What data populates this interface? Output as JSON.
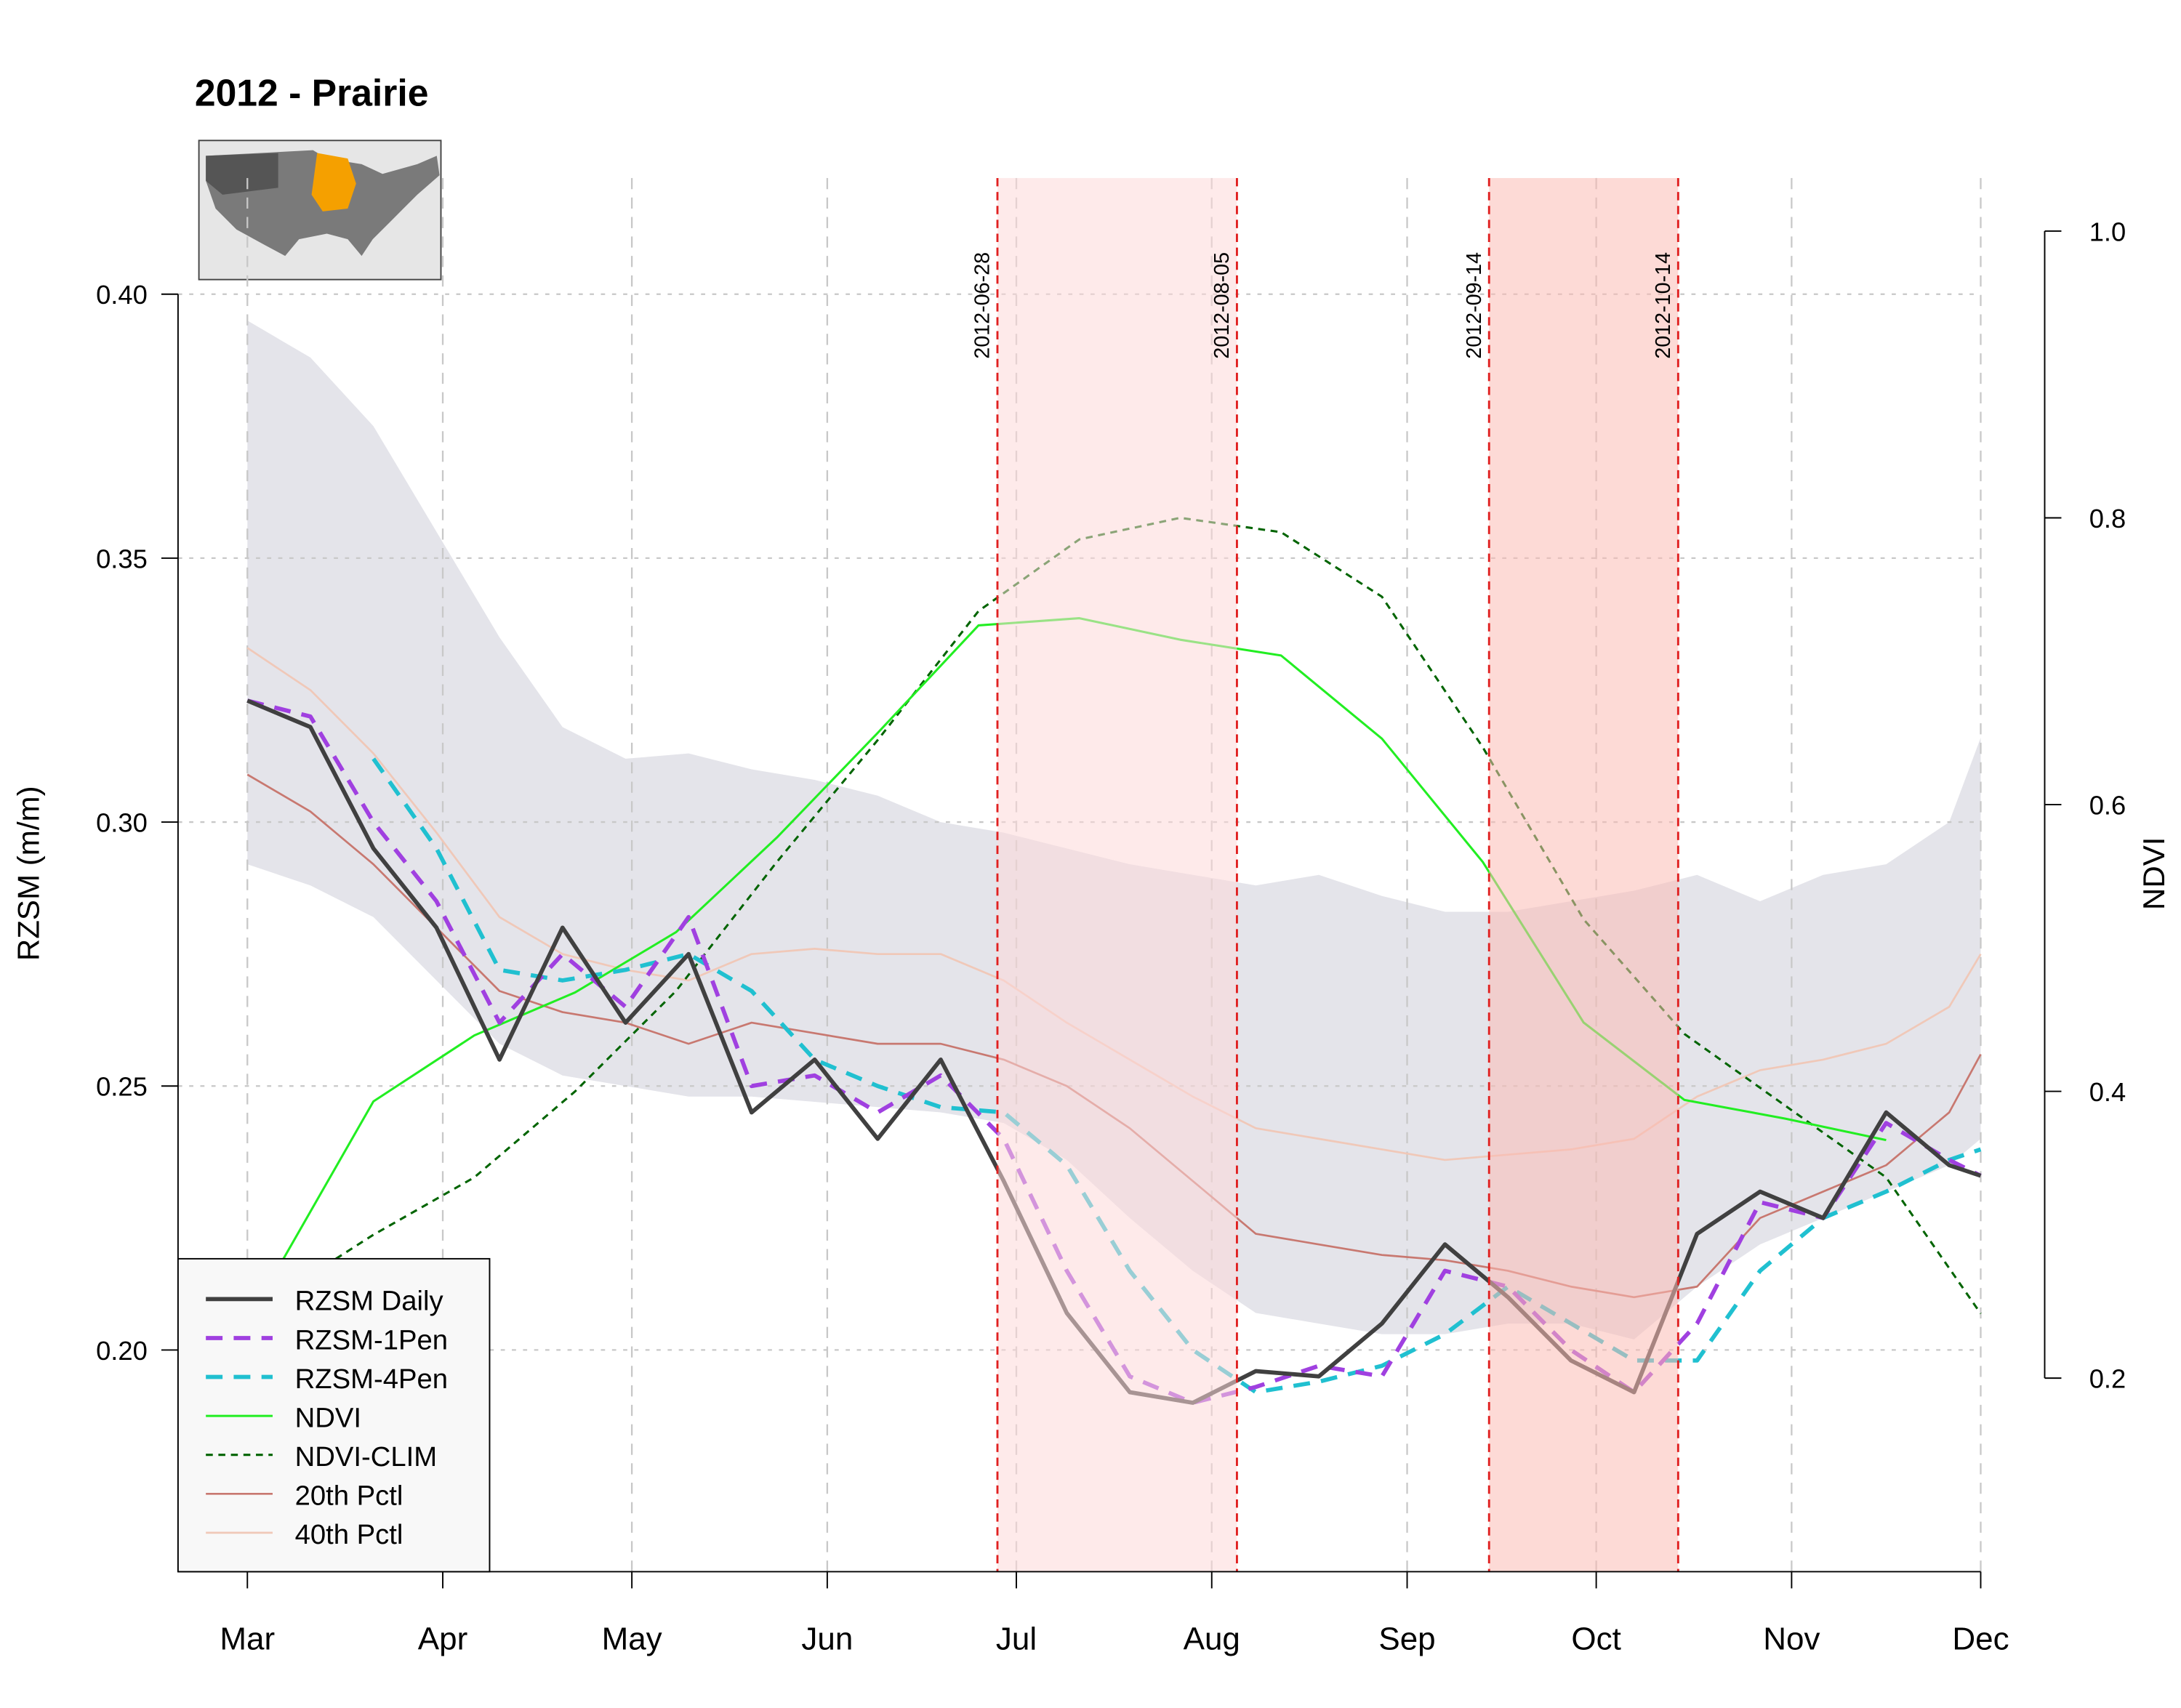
{
  "chart_data": {
    "type": "line",
    "title": "2012 - Prairie",
    "ylabel": "RZSM (m/m)",
    "y2label": "NDVI",
    "xlim": [
      "2012-02-19",
      "2012-12-01"
    ],
    "xticks": [
      {
        "value": "2012-03-01",
        "label": "Mar"
      },
      {
        "value": "2012-04-01",
        "label": "Apr"
      },
      {
        "value": "2012-05-01",
        "label": "May"
      },
      {
        "value": "2012-06-01",
        "label": "Jun"
      },
      {
        "value": "2012-07-01",
        "label": "Jul"
      },
      {
        "value": "2012-08-01",
        "label": "Aug"
      },
      {
        "value": "2012-09-01",
        "label": "Sep"
      },
      {
        "value": "2012-10-01",
        "label": "Oct"
      },
      {
        "value": "2012-11-01",
        "label": "Nov"
      },
      {
        "value": "2012-12-01",
        "label": "Dec"
      }
    ],
    "ylim": [
      0.158,
      0.422
    ],
    "yticks": [
      {
        "value": 0.2,
        "label": "0.20"
      },
      0.25,
      {
        "value": 0.3,
        "label": "0.30"
      },
      0.35,
      {
        "value": 0.4,
        "label": "0.40"
      }
    ],
    "y2lim": [
      0.065,
      1.037
    ],
    "y2ticks": [
      0.2,
      0.4,
      0.6,
      0.8,
      {
        "value": 1.0,
        "label": "1.0"
      }
    ],
    "grid": true,
    "legend": "bottom-left",
    "x": [
      "2012-03-01",
      "2012-03-11",
      "2012-03-21",
      "2012-03-31",
      "2012-04-10",
      "2012-04-20",
      "2012-04-30",
      "2012-05-10",
      "2012-05-20",
      "2012-05-30",
      "2012-06-09",
      "2012-06-19",
      "2012-06-29",
      "2012-07-09",
      "2012-07-19",
      "2012-07-29",
      "2012-08-08",
      "2012-08-18",
      "2012-08-28",
      "2012-09-07",
      "2012-09-17",
      "2012-09-27",
      "2012-10-07",
      "2012-10-17",
      "2012-10-27",
      "2012-11-06",
      "2012-11-16",
      "2012-11-26",
      "2012-12-01"
    ],
    "band": {
      "color": "#e4e4ea",
      "lower": [
        0.292,
        0.288,
        0.282,
        0.27,
        0.258,
        0.252,
        0.25,
        0.248,
        0.248,
        0.247,
        0.246,
        0.245,
        0.243,
        0.236,
        0.225,
        0.215,
        0.207,
        0.205,
        0.203,
        0.203,
        0.205,
        0.205,
        0.202,
        0.212,
        0.22,
        0.225,
        0.23,
        0.235,
        0.24
      ],
      "upper": [
        0.395,
        0.388,
        0.375,
        0.355,
        0.335,
        0.318,
        0.312,
        0.313,
        0.31,
        0.308,
        0.305,
        0.3,
        0.298,
        0.295,
        0.292,
        0.29,
        0.288,
        0.29,
        0.286,
        0.283,
        0.283,
        0.285,
        0.287,
        0.29,
        0.285,
        0.29,
        0.292,
        0.3,
        0.316
      ]
    },
    "series": [
      {
        "name": "RZSM Daily",
        "color": "#404040",
        "width": 3,
        "dash": "none",
        "values": [
          0.323,
          0.318,
          0.295,
          0.28,
          0.255,
          0.28,
          0.262,
          0.275,
          0.245,
          0.255,
          0.24,
          0.255,
          0.232,
          0.207,
          0.192,
          0.19,
          0.196,
          0.195,
          0.205,
          0.22,
          0.21,
          0.198,
          0.192,
          0.222,
          0.23,
          0.225,
          0.245,
          0.235,
          0.233
        ]
      },
      {
        "name": "RZSM-1Pen",
        "color": "#a040e0",
        "width": 3,
        "dash": "12 8",
        "values": [
          0.323,
          0.32,
          0.3,
          0.285,
          0.262,
          0.275,
          0.265,
          0.282,
          0.25,
          0.252,
          0.245,
          0.252,
          0.24,
          0.215,
          0.195,
          0.19,
          0.193,
          0.197,
          0.195,
          0.215,
          0.212,
          0.2,
          0.192,
          0.205,
          0.228,
          0.225,
          0.243,
          0.236,
          0.233
        ]
      },
      {
        "name": "RZSM-4Pen",
        "color": "#20c0d0",
        "width": 3,
        "dash": "12 8",
        "values": [
          null,
          null,
          0.312,
          0.295,
          0.272,
          0.27,
          0.272,
          0.275,
          0.268,
          0.255,
          0.25,
          0.246,
          0.245,
          0.235,
          0.215,
          0.2,
          0.192,
          0.194,
          0.197,
          0.203,
          0.212,
          0.205,
          0.198,
          0.198,
          0.215,
          0.225,
          0.23,
          0.236,
          0.238
        ]
      },
      {
        "name": "NDVI",
        "color": "#22ee22",
        "width": 1.6,
        "dash": "none",
        "axis": "y2",
        "x": [
          "2012-03-05",
          "2012-03-21",
          "2012-04-06",
          "2012-04-22",
          "2012-05-08",
          "2012-05-24",
          "2012-06-09",
          "2012-06-25",
          "2012-07-11",
          "2012-07-27",
          "2012-08-12",
          "2012-08-28",
          "2012-09-13",
          "2012-09-29",
          "2012-10-15",
          "2012-10-31",
          "2012-11-16",
          "2012-12-01"
        ],
        "values": [
          0.27,
          0.393,
          0.439,
          0.469,
          0.511,
          0.577,
          0.65,
          0.725,
          0.73,
          0.715,
          0.704,
          0.646,
          0.56,
          0.448,
          0.394,
          0.381,
          0.366,
          null
        ]
      },
      {
        "name": "NDVI-CLIM",
        "color": "#006400",
        "width": 1.6,
        "dash": "5 4",
        "axis": "y2",
        "x": [
          "2012-03-05",
          "2012-03-21",
          "2012-04-06",
          "2012-04-22",
          "2012-05-08",
          "2012-05-24",
          "2012-06-09",
          "2012-06-25",
          "2012-07-11",
          "2012-07-27",
          "2012-08-12",
          "2012-08-28",
          "2012-09-13",
          "2012-09-29",
          "2012-10-15",
          "2012-10-31",
          "2012-11-16",
          "2012-12-01"
        ],
        "values": [
          0.255,
          0.3,
          0.34,
          0.4,
          0.47,
          0.56,
          0.645,
          0.735,
          0.785,
          0.8,
          0.79,
          0.745,
          0.64,
          0.52,
          0.44,
          0.39,
          0.34,
          0.245
        ]
      },
      {
        "name": "20th Pctl",
        "color": "#c87870",
        "width": 1.4,
        "dash": "none",
        "values": [
          0.309,
          0.302,
          0.292,
          0.28,
          0.268,
          0.264,
          0.262,
          0.258,
          0.262,
          0.26,
          0.258,
          0.258,
          0.255,
          0.25,
          0.242,
          0.232,
          0.222,
          0.22,
          0.218,
          0.217,
          0.215,
          0.212,
          0.21,
          0.212,
          0.225,
          0.23,
          0.235,
          0.245,
          0.256
        ]
      },
      {
        "name": "40th Pctl",
        "color": "#f0c8b8",
        "width": 1.4,
        "dash": "none",
        "values": [
          0.333,
          0.325,
          0.313,
          0.298,
          0.282,
          0.275,
          0.272,
          0.27,
          0.275,
          0.276,
          0.275,
          0.275,
          0.27,
          0.262,
          0.255,
          0.248,
          0.242,
          0.24,
          0.238,
          0.236,
          0.237,
          0.238,
          0.24,
          0.248,
          0.253,
          0.255,
          0.258,
          0.265,
          0.275
        ]
      }
    ],
    "events": [
      {
        "start": "2012-06-28",
        "end": "2012-08-05",
        "color": "#fdd8d8"
      },
      {
        "start": "2012-09-14",
        "end": "2012-10-14",
        "color": "#fbbcb4"
      }
    ]
  }
}
